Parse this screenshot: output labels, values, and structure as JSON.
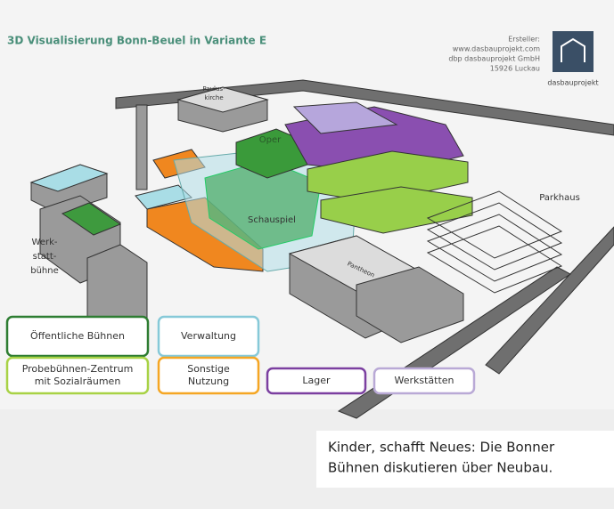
{
  "header": {
    "title": "3D Visualisierung Bonn-Beuel in Variante E",
    "credits": [
      "Ersteller:",
      "www.dasbauprojekt.com",
      "dbp dasbauprojekt GmbH",
      "15926 Luckau"
    ],
    "logo": "dasbauprojekt"
  },
  "labels": {
    "paulus": [
      "Paulus-",
      "kirche"
    ],
    "oper": "Oper",
    "schauspiel": "Schauspiel",
    "parkhaus": "Parkhaus",
    "werkstatt": [
      "Werk-",
      "statt-",
      "bühne"
    ],
    "pantheon": "Pantheon"
  },
  "legend": [
    {
      "lines": [
        "Öffentliche Bühnen"
      ]
    },
    {
      "lines": [
        "Verwaltung"
      ]
    },
    {
      "lines": [
        "Probebühnen-Zentrum",
        "mit Sozialräumen"
      ]
    },
    {
      "lines": [
        "Sonstige",
        "Nutzung"
      ]
    },
    {
      "lines": [
        "Lager"
      ]
    },
    {
      "lines": [
        "Werkstätten"
      ]
    }
  ],
  "caption": [
    "Kinder, schafft Neues: Die Bonner",
    "Bühnen diskutieren über Neubau."
  ]
}
